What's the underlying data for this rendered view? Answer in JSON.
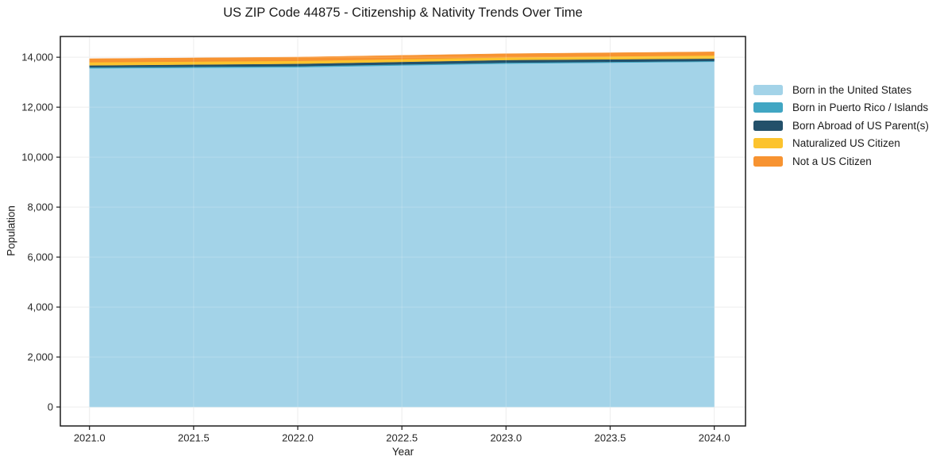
{
  "chart_data": {
    "type": "area",
    "stacked": true,
    "title": "US ZIP Code 44875 - Citizenship & Nativity Trends Over Time",
    "xlabel": "Year",
    "ylabel": "Population",
    "x": [
      2021,
      2022,
      2023,
      2024
    ],
    "series": [
      {
        "id": "born-us",
        "name": "Born in the United States",
        "color": "#a3d3e8",
        "values": [
          13555,
          13600,
          13745,
          13820
        ]
      },
      {
        "id": "born-pr",
        "name": "Born in Puerto Rico / Islands",
        "color": "#41a6c3",
        "values": [
          45,
          45,
          40,
          30
        ]
      },
      {
        "id": "born-abroad",
        "name": "Born Abroad of US Parent(s)",
        "color": "#23506a",
        "values": [
          75,
          95,
          105,
          95
        ]
      },
      {
        "id": "naturalized",
        "name": "Naturalized US Citizen",
        "color": "#fcc32e",
        "values": [
          125,
          115,
          105,
          130
        ]
      },
      {
        "id": "not-citizen",
        "name": "Not a US Citizen",
        "color": "#f79331",
        "values": [
          140,
          150,
          145,
          140
        ]
      }
    ],
    "x_ticks": [
      {
        "v": 2021.0,
        "label": "2021.0"
      },
      {
        "v": 2021.5,
        "label": "2021.5"
      },
      {
        "v": 2022.0,
        "label": "2022.0"
      },
      {
        "v": 2022.5,
        "label": "2022.5"
      },
      {
        "v": 2023.0,
        "label": "2023.0"
      },
      {
        "v": 2023.5,
        "label": "2023.5"
      },
      {
        "v": 2024.0,
        "label": "2024.0"
      }
    ],
    "y_ticks": [
      {
        "v": 0,
        "label": "0"
      },
      {
        "v": 2000,
        "label": "2,000"
      },
      {
        "v": 4000,
        "label": "4,000"
      },
      {
        "v": 6000,
        "label": "6,000"
      },
      {
        "v": 8000,
        "label": "8,000"
      },
      {
        "v": 10000,
        "label": "10,000"
      },
      {
        "v": 12000,
        "label": "12,000"
      },
      {
        "v": 14000,
        "label": "14,000"
      }
    ],
    "xlim": [
      2020.86,
      2024.15
    ],
    "ylim": [
      -760,
      14830
    ],
    "grid": true,
    "legend_position": "right-outside"
  },
  "colors": {
    "background": "#ffffff",
    "grid": "#e9e9e9",
    "grid_over_area": "rgba(255,255,255,0.2)",
    "spine": "#1c1c1c",
    "text": "#1a1a1a"
  }
}
